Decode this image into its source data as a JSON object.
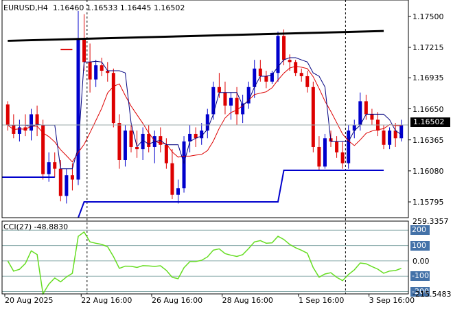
{
  "header": {
    "symbol_tf": "EURUSD,H4",
    "ohlc": "1.16460 1.16533 1.16445 1.16502"
  },
  "price_axis": {
    "labels": [
      "1.17500",
      "1.17215",
      "1.16935",
      "1.16650",
      "1.16365",
      "1.16080",
      "1.15795"
    ],
    "current_price": "1.16502"
  },
  "cci": {
    "title": "CCI(27) -48.8830",
    "labels": [
      "259.3357",
      "200",
      "100",
      "0.00",
      "-100",
      "-200",
      "-215.5483"
    ]
  },
  "time_axis": {
    "labels": [
      "20 Aug 2025",
      "22 Aug 16:00",
      "26 Aug 16:00",
      "28 Aug 16:00",
      "1 Sep 16:00",
      "3 Sep 16:00"
    ]
  },
  "colors": {
    "bull": "#0000cc",
    "bear": "#dd0000",
    "ma_fast": "#dd0000",
    "ma_slow": "#000080",
    "cci_line": "#66dd22",
    "trend_line": "#000000",
    "stop_line": "#0000cc",
    "cci_box_pos": "#4472a8",
    "cci_box_neg": "#4472a8"
  },
  "chart_data": {
    "type": "candlestick",
    "symbol": "EURUSD",
    "timeframe": "H4",
    "ylim": [
      1.1565,
      1.1765
    ],
    "candles": [
      [
        1.1669,
        1.1672,
        1.1645,
        1.165
      ],
      [
        1.165,
        1.166,
        1.1638,
        1.1642
      ],
      [
        1.1642,
        1.1655,
        1.1635,
        1.1648
      ],
      [
        1.1648,
        1.166,
        1.164,
        1.1645
      ],
      [
        1.1645,
        1.1665,
        1.1636,
        1.166
      ],
      [
        1.166,
        1.1668,
        1.164,
        1.165
      ],
      [
        1.165,
        1.1655,
        1.16,
        1.1605
      ],
      [
        1.1605,
        1.1625,
        1.1598,
        1.1616
      ],
      [
        1.1616,
        1.1625,
        1.1602,
        1.161
      ],
      [
        1.161,
        1.1618,
        1.158,
        1.1585
      ],
      [
        1.1585,
        1.161,
        1.1578,
        1.1604
      ],
      [
        1.1604,
        1.1615,
        1.159,
        1.16
      ],
      [
        1.16,
        1.1755,
        1.1595,
        1.173
      ],
      [
        1.173,
        1.1752,
        1.17,
        1.1708
      ],
      [
        1.1708,
        1.1725,
        1.168,
        1.1692
      ],
      [
        1.1692,
        1.171,
        1.1685,
        1.1705
      ],
      [
        1.1705,
        1.1712,
        1.1695,
        1.17
      ],
      [
        1.17,
        1.1708,
        1.169,
        1.1698
      ],
      [
        1.1698,
        1.1702,
        1.1648,
        1.1652
      ],
      [
        1.1652,
        1.166,
        1.161,
        1.1618
      ],
      [
        1.1618,
        1.165,
        1.1612,
        1.1645
      ],
      [
        1.1645,
        1.165,
        1.1625,
        1.163
      ],
      [
        1.163,
        1.1645,
        1.162,
        1.1628
      ],
      [
        1.1628,
        1.1648,
        1.1618,
        1.1642
      ],
      [
        1.1642,
        1.165,
        1.1625,
        1.163
      ],
      [
        1.163,
        1.1645,
        1.1615,
        1.164
      ],
      [
        1.164,
        1.1648,
        1.1625,
        1.1632
      ],
      [
        1.1632,
        1.1638,
        1.161,
        1.1615
      ],
      [
        1.1615,
        1.1628,
        1.1582,
        1.1586
      ],
      [
        1.1586,
        1.16,
        1.1578,
        1.1592
      ],
      [
        1.1592,
        1.164,
        1.1588,
        1.1635
      ],
      [
        1.1635,
        1.165,
        1.1625,
        1.1642
      ],
      [
        1.1642,
        1.1648,
        1.163,
        1.1638
      ],
      [
        1.1638,
        1.1652,
        1.1632,
        1.1645
      ],
      [
        1.1645,
        1.1665,
        1.1638,
        1.166
      ],
      [
        1.166,
        1.169,
        1.1655,
        1.1685
      ],
      [
        1.1685,
        1.1698,
        1.1675,
        1.168
      ],
      [
        1.168,
        1.169,
        1.166,
        1.1668
      ],
      [
        1.1668,
        1.168,
        1.1655,
        1.1675
      ],
      [
        1.1675,
        1.1685,
        1.165,
        1.166
      ],
      [
        1.166,
        1.1678,
        1.1652,
        1.167
      ],
      [
        1.167,
        1.169,
        1.1665,
        1.1685
      ],
      [
        1.1685,
        1.171,
        1.1675,
        1.1702
      ],
      [
        1.1702,
        1.171,
        1.169,
        1.1695
      ],
      [
        1.1695,
        1.17,
        1.1684,
        1.169
      ],
      [
        1.169,
        1.17,
        1.1688,
        1.1698
      ],
      [
        1.1698,
        1.1736,
        1.169,
        1.1732
      ],
      [
        1.1732,
        1.1738,
        1.1705,
        1.171
      ],
      [
        1.171,
        1.1715,
        1.17,
        1.1708
      ],
      [
        1.1708,
        1.171,
        1.1695,
        1.1698
      ],
      [
        1.1698,
        1.1702,
        1.169,
        1.1695
      ],
      [
        1.1695,
        1.17,
        1.168,
        1.1685
      ],
      [
        1.1685,
        1.169,
        1.1625,
        1.163
      ],
      [
        1.163,
        1.164,
        1.1608,
        1.1612
      ],
      [
        1.1612,
        1.1642,
        1.161,
        1.1638
      ],
      [
        1.1638,
        1.1645,
        1.163,
        1.1635
      ],
      [
        1.1635,
        1.164,
        1.162,
        1.1625
      ],
      [
        1.1625,
        1.1635,
        1.161,
        1.1615
      ],
      [
        1.1615,
        1.165,
        1.161,
        1.1645
      ],
      [
        1.1645,
        1.1655,
        1.1638,
        1.165
      ],
      [
        1.165,
        1.168,
        1.1645,
        1.1672
      ],
      [
        1.1672,
        1.1678,
        1.1655,
        1.166
      ],
      [
        1.166,
        1.1665,
        1.165,
        1.1655
      ],
      [
        1.1655,
        1.1662,
        1.164,
        1.1645
      ],
      [
        1.1645,
        1.165,
        1.1628,
        1.1632
      ],
      [
        1.1632,
        1.1648,
        1.1628,
        1.1645
      ],
      [
        1.1645,
        1.1652,
        1.163,
        1.1638
      ],
      [
        1.1638,
        1.1655,
        1.1635,
        1.165
      ]
    ],
    "cci_ylim": [
      -215.5483,
      259.3357
    ],
    "cci_levels": [
      200,
      100,
      0,
      -100,
      -200
    ],
    "cci_current": -48.883
  }
}
